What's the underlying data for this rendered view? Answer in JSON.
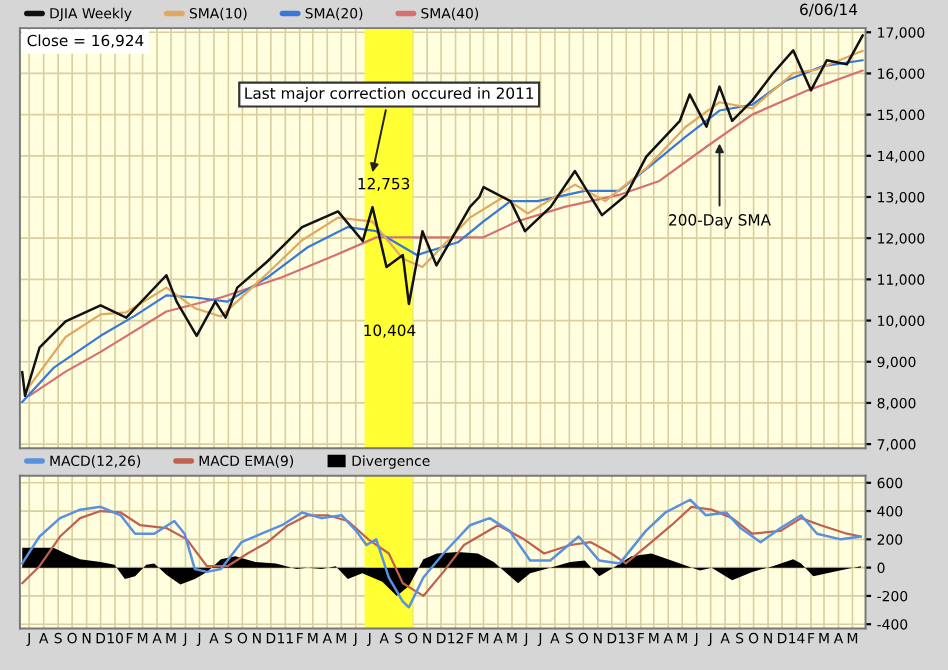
{
  "chart_data": [
    {
      "type": "line",
      "legend": "top",
      "grid": true,
      "tick_labels": "y",
      "xlim": [
        "2009-06-25",
        "2014-06-12"
      ],
      "ylim": [
        6900,
        17100
      ],
      "yticks": [
        {
          "value": 7000,
          "label": "7,000"
        },
        {
          "value": 8000,
          "label": "8,000"
        },
        {
          "value": 9000,
          "label": "9,000"
        },
        {
          "value": 10000,
          "label": "10,000"
        },
        {
          "value": 11000,
          "label": "11,000"
        },
        {
          "value": 12000,
          "label": "12,000"
        },
        {
          "value": 13000,
          "label": "13,000"
        },
        {
          "value": 14000,
          "label": "14,000"
        },
        {
          "value": 15000,
          "label": "15,000"
        },
        {
          "value": 16000,
          "label": "16,000"
        },
        {
          "value": 17000,
          "label": "17,000"
        }
      ],
      "xticks": [
        {
          "value": "2009-07-15",
          "label": null
        },
        {
          "value": "2009-08-15",
          "label": null
        },
        {
          "value": "2009-09-15",
          "label": null
        },
        {
          "value": "2009-10-15",
          "label": null
        },
        {
          "value": "2009-11-15",
          "label": null
        },
        {
          "value": "2009-12-15",
          "label": null
        },
        {
          "value": "2010-01-15",
          "label": null
        },
        {
          "value": "2010-02-15",
          "label": null
        },
        {
          "value": "2010-03-15",
          "label": null
        },
        {
          "value": "2010-04-15",
          "label": null
        },
        {
          "value": "2010-05-15",
          "label": null
        },
        {
          "value": "2010-06-15",
          "label": null
        },
        {
          "value": "2010-07-15",
          "label": null
        },
        {
          "value": "2010-08-15",
          "label": null
        },
        {
          "value": "2010-09-15",
          "label": null
        },
        {
          "value": "2010-10-15",
          "label": null
        },
        {
          "value": "2010-11-15",
          "label": null
        },
        {
          "value": "2010-12-15",
          "label": null
        },
        {
          "value": "2011-01-15",
          "label": null
        },
        {
          "value": "2011-02-15",
          "label": null
        },
        {
          "value": "2011-03-15",
          "label": null
        },
        {
          "value": "2011-04-15",
          "label": null
        },
        {
          "value": "2011-05-15",
          "label": null
        },
        {
          "value": "2011-06-15",
          "label": null
        },
        {
          "value": "2011-07-15",
          "label": null
        },
        {
          "value": "2011-08-15",
          "label": null
        },
        {
          "value": "2011-09-15",
          "label": null
        },
        {
          "value": "2011-10-15",
          "label": null
        },
        {
          "value": "2011-11-15",
          "label": null
        },
        {
          "value": "2011-12-15",
          "label": null
        },
        {
          "value": "2012-01-15",
          "label": null
        },
        {
          "value": "2012-02-15",
          "label": null
        },
        {
          "value": "2012-03-15",
          "label": null
        },
        {
          "value": "2012-04-15",
          "label": null
        },
        {
          "value": "2012-05-15",
          "label": null
        },
        {
          "value": "2012-06-15",
          "label": null
        },
        {
          "value": "2012-07-15",
          "label": null
        },
        {
          "value": "2012-08-15",
          "label": null
        },
        {
          "value": "2012-09-15",
          "label": null
        },
        {
          "value": "2012-10-15",
          "label": null
        },
        {
          "value": "2012-11-15",
          "label": null
        },
        {
          "value": "2012-12-15",
          "label": null
        },
        {
          "value": "2013-01-15",
          "label": null
        },
        {
          "value": "2013-02-15",
          "label": null
        },
        {
          "value": "2013-03-15",
          "label": null
        },
        {
          "value": "2013-04-15",
          "label": null
        },
        {
          "value": "2013-05-15",
          "label": null
        },
        {
          "value": "2013-06-15",
          "label": null
        },
        {
          "value": "2013-07-15",
          "label": null
        },
        {
          "value": "2013-08-15",
          "label": null
        },
        {
          "value": "2013-09-15",
          "label": null
        },
        {
          "value": "2013-10-15",
          "label": null
        },
        {
          "value": "2013-11-15",
          "label": null
        },
        {
          "value": "2013-12-15",
          "label": null
        },
        {
          "value": "2014-01-15",
          "label": null
        },
        {
          "value": "2014-02-15",
          "label": null
        },
        {
          "value": "2014-03-15",
          "label": null
        },
        {
          "value": "2014-04-15",
          "label": null
        },
        {
          "value": "2014-05-15",
          "label": null
        }
      ],
      "bands": [
        {
          "axis": "x",
          "from": "2011-07-04",
          "to": "2011-10-15",
          "color": "#ffff33"
        }
      ],
      "series": [
        {
          "name": "DJIA Weekly",
          "color": "#111111",
          "x": [
            "2009-06-30",
            "2009-07-06",
            "2009-08-06",
            "2009-10-01",
            "2009-12-15",
            "2010-02-08",
            "2010-05-05",
            "2010-05-27",
            "2010-07-09",
            "2010-08-18",
            "2010-09-09",
            "2010-10-04",
            "2010-12-08",
            "2011-02-20",
            "2011-05-08",
            "2011-06-30",
            "2011-07-21",
            "2011-08-20",
            "2011-09-24",
            "2011-10-07",
            "2011-11-05",
            "2011-12-05",
            "2012-02-15",
            "2012-03-06",
            "2012-03-15",
            "2012-05-12",
            "2012-06-12",
            "2012-08-06",
            "2012-09-27",
            "2012-11-24",
            "2013-01-15",
            "2013-02-27",
            "2013-05-10",
            "2013-05-31",
            "2013-07-06",
            "2013-08-03",
            "2013-08-30",
            "2013-10-12",
            "2013-11-24",
            "2014-01-08",
            "2014-02-15",
            "2014-03-21",
            "2014-05-03",
            "2014-06-06"
          ],
          "values": [
            8750,
            8170,
            9340,
            9980,
            10370,
            10070,
            11100,
            10460,
            9630,
            10460,
            10070,
            10800,
            11440,
            12270,
            12650,
            11930,
            12753,
            11300,
            11590,
            10404,
            12170,
            11340,
            12760,
            13000,
            13240,
            12900,
            12170,
            12760,
            13630,
            12560,
            13050,
            13980,
            14850,
            15490,
            14710,
            15680,
            14850,
            15340,
            15980,
            16560,
            15590,
            16320,
            16220,
            16924
          ]
        },
        {
          "name": "SMA(10)",
          "color": "#e0a860",
          "x": [
            "2009-07-15",
            "2009-10-01",
            "2009-12-15",
            "2010-02-08",
            "2010-05-05",
            "2010-07-05",
            "2010-08-30",
            "2010-12-08",
            "2011-02-20",
            "2011-05-08",
            "2011-07-21",
            "2011-09-24",
            "2011-11-05",
            "2012-02-15",
            "2012-04-27",
            "2012-06-18",
            "2012-09-27",
            "2012-12-01",
            "2013-02-27",
            "2013-05-22",
            "2013-08-03",
            "2013-10-12",
            "2014-01-08",
            "2014-03-01",
            "2014-06-06"
          ],
          "values": [
            8400,
            9600,
            10150,
            10200,
            10800,
            10300,
            10100,
            11150,
            11950,
            12500,
            12400,
            11500,
            11300,
            12500,
            13000,
            12600,
            13300,
            12900,
            13700,
            14700,
            15300,
            15150,
            16000,
            16100,
            16550
          ]
        },
        {
          "name": "SMA(20)",
          "color": "#3a78d8",
          "x": [
            "2009-06-30",
            "2009-09-05",
            "2009-12-15",
            "2010-02-27",
            "2010-05-05",
            "2010-07-05",
            "2010-09-13",
            "2010-12-08",
            "2011-03-04",
            "2011-05-29",
            "2011-07-29",
            "2011-10-24",
            "2012-01-20",
            "2012-03-15",
            "2012-05-12",
            "2012-07-09",
            "2012-10-18",
            "2012-12-30",
            "2013-03-10",
            "2013-05-22",
            "2013-08-03",
            "2013-10-12",
            "2013-12-24",
            "2014-03-10",
            "2014-06-06"
          ],
          "values": [
            8020,
            8850,
            9630,
            10120,
            10610,
            10560,
            10460,
            11050,
            11780,
            12270,
            12170,
            11590,
            11900,
            12410,
            12900,
            12900,
            13150,
            13150,
            13780,
            14460,
            15100,
            15240,
            15830,
            16170,
            16320
          ]
        },
        {
          "name": "SMA(40)",
          "color": "#d87070",
          "x": [
            "2009-07-15",
            "2009-10-01",
            "2009-12-15",
            "2010-05-05",
            "2010-08-30",
            "2011-01-08",
            "2011-05-03",
            "2011-07-29",
            "2011-12-05",
            "2012-03-15",
            "2012-05-27",
            "2012-09-05",
            "2012-12-30",
            "2013-03-27",
            "2013-07-06",
            "2013-10-12",
            "2014-02-08",
            "2014-06-06"
          ],
          "values": [
            8170,
            8760,
            9240,
            10220,
            10560,
            11050,
            11590,
            12020,
            12020,
            12020,
            12410,
            12760,
            13050,
            13390,
            14220,
            15000,
            15590,
            16070
          ]
        }
      ],
      "annotations": [
        "Close = 16,924",
        "6/06/14",
        {
          "text": "Last major correction occured in 2011",
          "x": "2011-07-21",
          "y": 13600
        },
        {
          "text": "12,753",
          "x": "2011-07-21",
          "y": 12753
        },
        {
          "text": "10,404",
          "x": "2011-10-07",
          "y": 10404
        },
        {
          "text": "200-Day SMA",
          "x": "2013-08-03",
          "y": 14300
        }
      ]
    },
    {
      "type": "line",
      "legend": "top",
      "grid": true,
      "xlim": [
        "2009-06-25",
        "2014-06-12"
      ],
      "ylim": [
        -430,
        650
      ],
      "yticks": [
        -400,
        -200,
        0,
        200,
        400,
        600
      ],
      "xticks": [
        {
          "value": "2009-07-15",
          "label": "J"
        },
        {
          "value": "2009-08-15",
          "label": "A"
        },
        {
          "value": "2009-09-15",
          "label": "S"
        },
        {
          "value": "2009-10-15",
          "label": "O"
        },
        {
          "value": "2009-11-15",
          "label": "N"
        },
        {
          "value": "2009-12-15",
          "label": "D"
        },
        {
          "value": "2010-01-15",
          "label": "10"
        },
        {
          "value": "2010-02-15",
          "label": "F"
        },
        {
          "value": "2010-03-15",
          "label": "M"
        },
        {
          "value": "2010-04-15",
          "label": "A"
        },
        {
          "value": "2010-05-15",
          "label": "M"
        },
        {
          "value": "2010-06-15",
          "label": "J"
        },
        {
          "value": "2010-07-15",
          "label": "J"
        },
        {
          "value": "2010-08-15",
          "label": "A"
        },
        {
          "value": "2010-09-15",
          "label": "S"
        },
        {
          "value": "2010-10-15",
          "label": "O"
        },
        {
          "value": "2010-11-15",
          "label": "N"
        },
        {
          "value": "2010-12-15",
          "label": "D"
        },
        {
          "value": "2011-01-15",
          "label": "11"
        },
        {
          "value": "2011-02-15",
          "label": "F"
        },
        {
          "value": "2011-03-15",
          "label": "M"
        },
        {
          "value": "2011-04-15",
          "label": "A"
        },
        {
          "value": "2011-05-15",
          "label": "M"
        },
        {
          "value": "2011-06-15",
          "label": "J"
        },
        {
          "value": "2011-07-15",
          "label": "J"
        },
        {
          "value": "2011-08-15",
          "label": "A"
        },
        {
          "value": "2011-09-15",
          "label": "S"
        },
        {
          "value": "2011-10-15",
          "label": "O"
        },
        {
          "value": "2011-11-15",
          "label": "N"
        },
        {
          "value": "2011-12-15",
          "label": "D"
        },
        {
          "value": "2012-01-15",
          "label": "12"
        },
        {
          "value": "2012-02-15",
          "label": "F"
        },
        {
          "value": "2012-03-15",
          "label": "M"
        },
        {
          "value": "2012-04-15",
          "label": "A"
        },
        {
          "value": "2012-05-15",
          "label": "M"
        },
        {
          "value": "2012-06-15",
          "label": "J"
        },
        {
          "value": "2012-07-15",
          "label": "J"
        },
        {
          "value": "2012-08-15",
          "label": "A"
        },
        {
          "value": "2012-09-15",
          "label": "S"
        },
        {
          "value": "2012-10-15",
          "label": "O"
        },
        {
          "value": "2012-11-15",
          "label": "N"
        },
        {
          "value": "2012-12-15",
          "label": "D"
        },
        {
          "value": "2013-01-15",
          "label": "13"
        },
        {
          "value": "2013-02-15",
          "label": "F"
        },
        {
          "value": "2013-03-15",
          "label": "M"
        },
        {
          "value": "2013-04-15",
          "label": "A"
        },
        {
          "value": "2013-05-15",
          "label": "M"
        },
        {
          "value": "2013-06-15",
          "label": "J"
        },
        {
          "value": "2013-07-15",
          "label": "J"
        },
        {
          "value": "2013-08-15",
          "label": "A"
        },
        {
          "value": "2013-09-15",
          "label": "S"
        },
        {
          "value": "2013-10-15",
          "label": "O"
        },
        {
          "value": "2013-11-15",
          "label": "N"
        },
        {
          "value": "2013-12-15",
          "label": "D"
        },
        {
          "value": "2014-01-15",
          "label": "14"
        },
        {
          "value": "2014-02-15",
          "label": "F"
        },
        {
          "value": "2014-03-15",
          "label": "M"
        },
        {
          "value": "2014-04-15",
          "label": "A"
        },
        {
          "value": "2014-05-15",
          "label": "M"
        }
      ],
      "bands": [
        {
          "axis": "x",
          "from": "2011-07-04",
          "to": "2011-10-15",
          "color": "#ffff33"
        }
      ],
      "series": [
        {
          "name": "MACD(12,26)",
          "color": "#5a90e0",
          "x": [
            "2009-06-30",
            "2009-08-06",
            "2009-09-19",
            "2009-11-01",
            "2009-12-15",
            "2010-01-27",
            "2010-02-27",
            "2010-04-09",
            "2010-05-22",
            "2010-06-13",
            "2010-07-05",
            "2010-07-31",
            "2010-08-30",
            "2010-10-13",
            "2010-11-25",
            "2011-01-08",
            "2011-02-20",
            "2011-04-03",
            "2011-05-16",
            "2011-06-16",
            "2011-07-08",
            "2011-07-29",
            "2011-08-25",
            "2011-09-24",
            "2011-10-07",
            "2011-11-07",
            "2011-12-20",
            "2012-02-15",
            "2012-03-28",
            "2012-05-10",
            "2012-06-23",
            "2012-08-05",
            "2012-10-05",
            "2012-11-18",
            "2013-01-01",
            "2013-02-26",
            "2013-04-09",
            "2013-06-01",
            "2013-07-05",
            "2013-08-17",
            "2013-09-17",
            "2013-10-30",
            "2013-12-12",
            "2014-01-25",
            "2014-02-28",
            "2014-04-20",
            "2014-06-02"
          ],
          "values": [
            30,
            220,
            350,
            410,
            430,
            370,
            240,
            240,
            330,
            240,
            -10,
            -30,
            -10,
            180,
            240,
            300,
            390,
            350,
            370,
            260,
            160,
            200,
            -70,
            -240,
            -280,
            -70,
            100,
            300,
            350,
            260,
            50,
            50,
            220,
            50,
            30,
            260,
            390,
            480,
            370,
            390,
            280,
            180,
            280,
            370,
            240,
            200,
            220
          ]
        },
        {
          "name": "MACD EMA(9)",
          "color": "#c06050",
          "x": [
            "2009-06-30",
            "2009-08-06",
            "2009-09-19",
            "2009-11-01",
            "2009-12-15",
            "2010-01-27",
            "2010-03-10",
            "2010-05-05",
            "2010-06-18",
            "2010-07-31",
            "2010-09-13",
            "2010-10-26",
            "2010-12-08",
            "2011-01-21",
            "2011-03-04",
            "2011-04-16",
            "2011-05-29",
            "2011-07-12",
            "2011-08-25",
            "2011-09-24",
            "2011-11-07",
            "2011-12-20",
            "2012-02-02",
            "2012-04-15",
            "2012-06-10",
            "2012-07-23",
            "2012-09-17",
            "2012-10-31",
            "2012-12-14",
            "2013-01-14",
            "2013-03-10",
            "2013-04-22",
            "2013-06-04",
            "2013-07-17",
            "2013-08-30",
            "2013-10-12",
            "2013-12-12",
            "2014-01-25",
            "2014-03-08",
            "2014-05-03",
            "2014-06-02"
          ],
          "values": [
            -110,
            10,
            220,
            350,
            400,
            390,
            300,
            280,
            200,
            10,
            10,
            100,
            180,
            300,
            370,
            370,
            330,
            200,
            100,
            -110,
            -200,
            -30,
            160,
            300,
            200,
            100,
            160,
            180,
            100,
            30,
            180,
            300,
            430,
            410,
            350,
            240,
            260,
            350,
            300,
            240,
            220
          ]
        },
        {
          "name": "Divergence",
          "type": "area",
          "color": "#000000",
          "x": [
            "2009-06-30",
            "2009-08-06",
            "2009-09-05",
            "2009-10-01",
            "2009-11-01",
            "2009-12-15",
            "2010-01-14",
            "2010-02-05",
            "2010-02-27",
            "2010-03-23",
            "2010-04-09",
            "2010-05-05",
            "2010-06-04",
            "2010-07-05",
            "2010-07-31",
            "2010-08-30",
            "2010-09-30",
            "2010-11-12",
            "2010-12-26",
            "2011-02-08",
            "2011-03-04",
            "2011-04-03",
            "2011-05-03",
            "2011-05-29",
            "2011-06-29",
            "2011-08-11",
            "2011-09-11",
            "2011-10-07",
            "2011-11-07",
            "2011-12-06",
            "2012-01-20",
            "2012-03-03",
            "2012-04-06",
            "2012-05-28",
            "2012-06-23",
            "2012-08-05",
            "2012-09-17",
            "2012-10-18",
            "2012-11-18",
            "2012-12-14",
            "2013-01-26",
            "2013-03-10",
            "2013-04-22",
            "2013-06-22",
            "2013-07-17",
            "2013-08-30",
            "2013-10-12",
            "2013-11-25",
            "2014-01-08",
            "2014-01-25",
            "2014-02-20",
            "2014-04-03",
            "2014-05-03",
            "2014-06-02"
          ],
          "values": [
            140,
            140,
            140,
            100,
            60,
            40,
            20,
            -80,
            -60,
            20,
            30,
            -50,
            -120,
            -80,
            -30,
            60,
            80,
            40,
            30,
            -10,
            0,
            -10,
            10,
            -80,
            -40,
            -100,
            -200,
            -130,
            60,
            100,
            110,
            100,
            40,
            -110,
            -40,
            0,
            40,
            50,
            -60,
            -10,
            80,
            100,
            50,
            -20,
            0,
            -90,
            -30,
            10,
            60,
            30,
            -60,
            -30,
            -10,
            10
          ]
        }
      ]
    }
  ]
}
